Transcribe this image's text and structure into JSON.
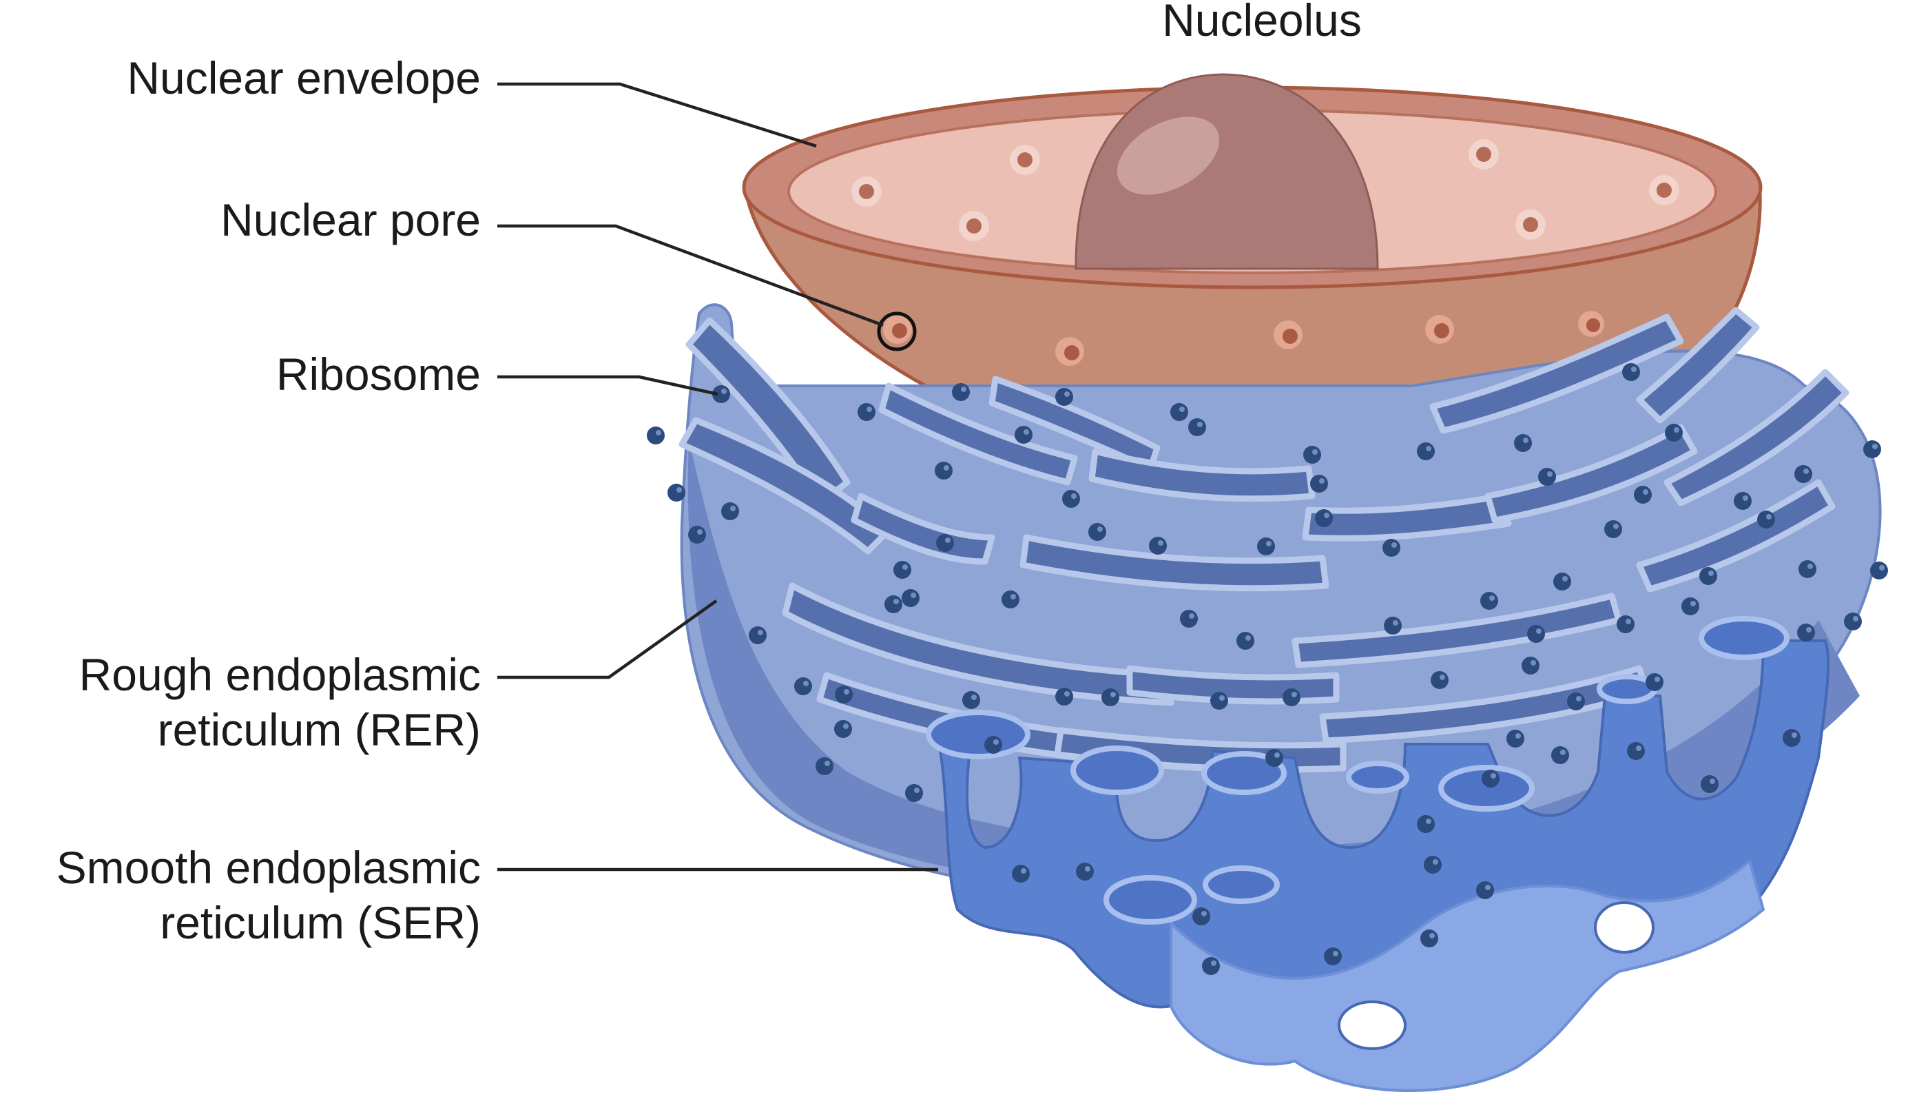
{
  "labels": {
    "nucleolus": "Nucleolus",
    "nuclear_envelope": "Nuclear envelope",
    "nuclear_pore": "Nuclear pore",
    "ribosome": "Ribosome",
    "rer_line1": "Rough endoplasmic",
    "rer_line2": "reticulum (RER)",
    "ser_line1": "Smooth endoplasmic",
    "ser_line2": "reticulum (SER)"
  },
  "colors": {
    "envelope_outer": "#c48c75",
    "envelope_rim": "#c9897a",
    "envelope_inner": "#ebbfb3",
    "nucleolus": "#ab7a76",
    "rer_light": "#8fa5d6",
    "rer_mid": "#6e87c4",
    "rer_dark": "#5670ae",
    "ser": "#5b82d0",
    "ser_light": "#8aa8e6",
    "ribosome": "#2d4a7c"
  },
  "icons": {
    "nuclear_pore_marker": "circle-outline-icon",
    "ribosome": "dot-icon"
  }
}
